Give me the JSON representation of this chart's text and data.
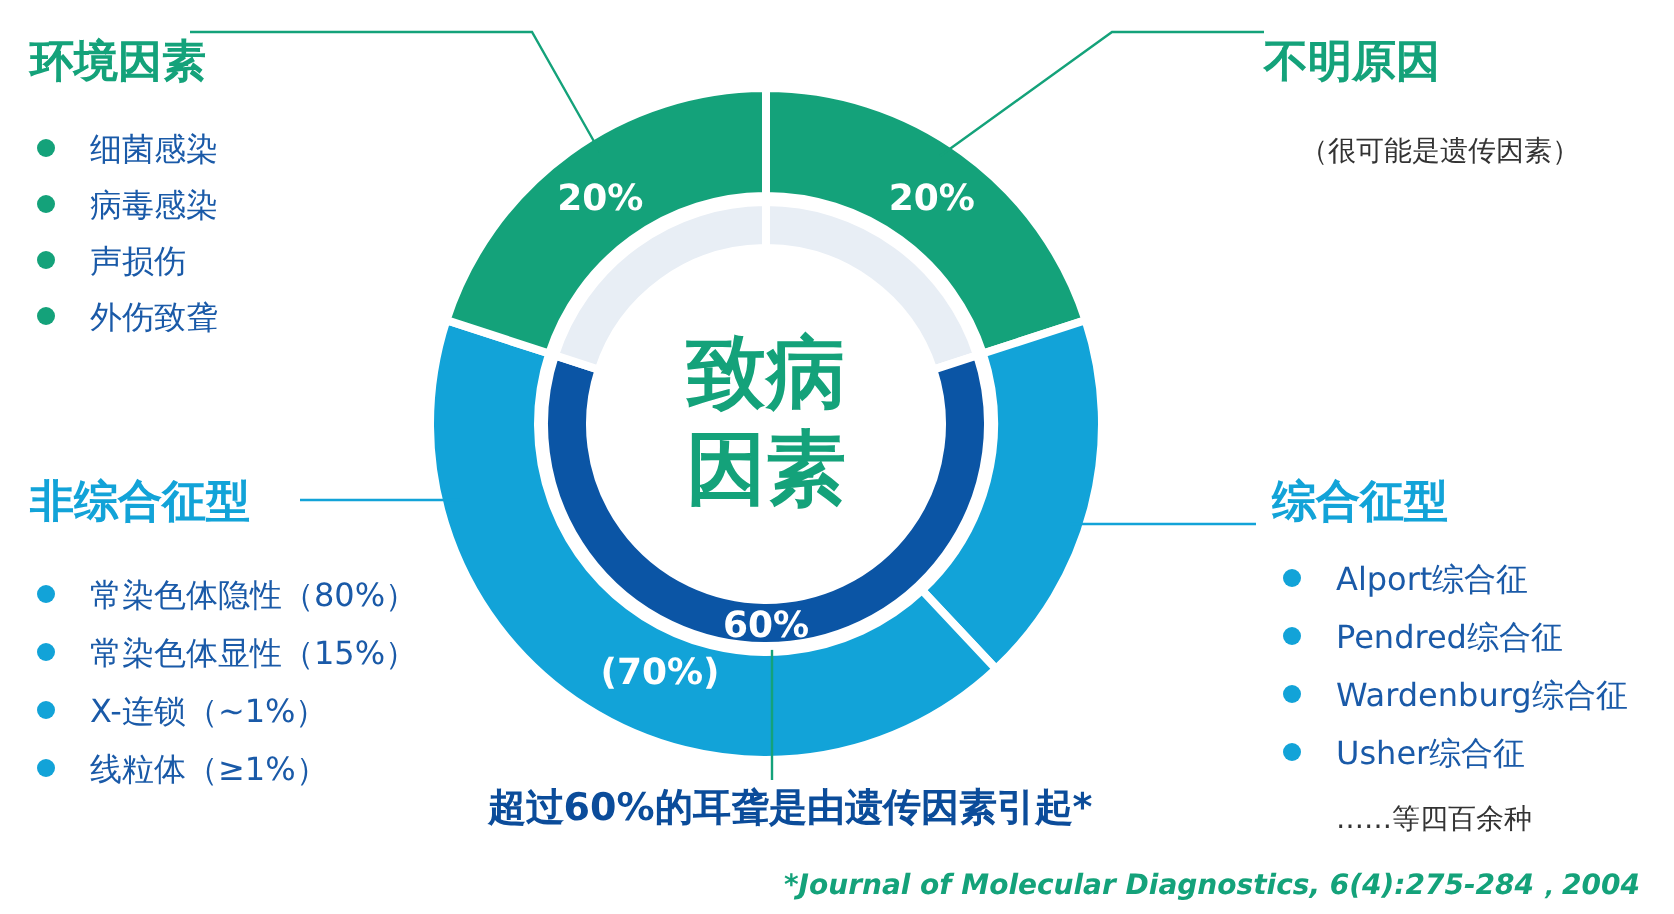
{
  "chart_data": [
    {
      "type": "donut",
      "categories": [
        "不明原因",
        "综合征型",
        "非综合征型",
        "环境因素"
      ],
      "values": [
        20,
        18,
        42,
        20
      ],
      "colors": [
        "#14a27a",
        "#12a3d8",
        "#12a3d8",
        "#14a27a"
      ],
      "value_labels": [
        "20%",
        null,
        null,
        "20%"
      ],
      "annotations": [
        "（很可能是遗传因素）",
        "细菌感染",
        "病毒感染",
        "声损伤",
        "外伤致聋",
        "常染色体隐性（80%）",
        "常染色体显性（15%）",
        "X-连锁（~1%）",
        "线粒体（≥1%）",
        "Alport综合征",
        "Pendred综合征",
        "Wardenburg综合征",
        "Usher综合征",
        "……等四百余种",
        "超过60%的耳聋是由遗传因素引起*",
        "*Journal of Molecular Diagnostics, 6(4):275-284，2004",
        "(70%)"
      ]
    },
    {
      "type": "donut",
      "title": "致病因素",
      "categories": [
        null,
        null,
        null
      ],
      "values": [
        20,
        60,
        20
      ],
      "colors": [
        "#e8eef5",
        "#0b55a5",
        "#e8eef5"
      ],
      "value_labels": [
        null,
        "60%",
        null
      ]
    }
  ]
}
